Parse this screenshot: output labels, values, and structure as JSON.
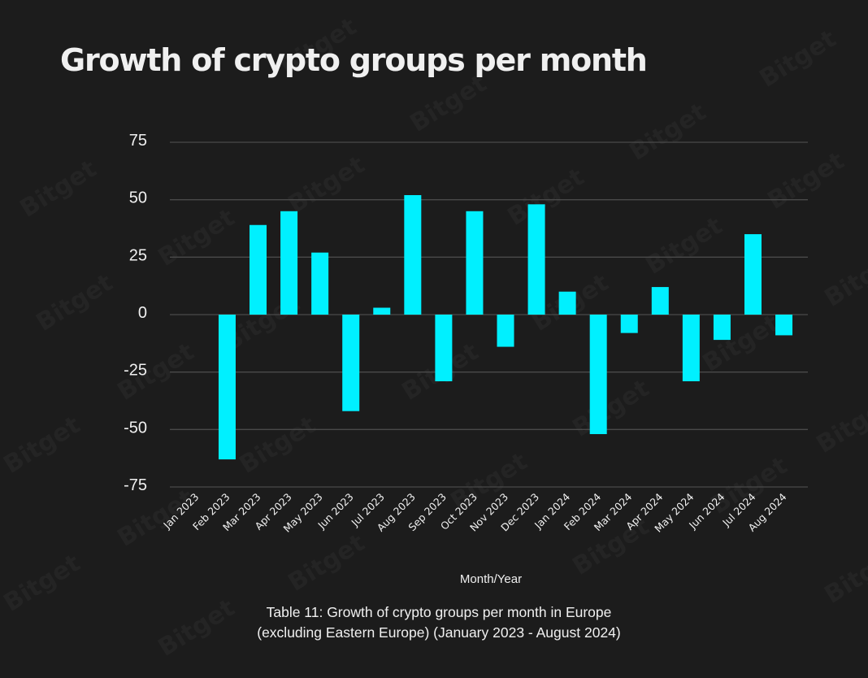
{
  "watermark_text": "Bitget",
  "colors": {
    "background": "#1c1c1c",
    "bar": "#00f0ff",
    "grid": "#4a4a4a",
    "text": "#f0f0f0"
  },
  "chart_data": {
    "type": "bar",
    "title": "Growth of crypto groups per month",
    "xlabel": "Month/Year",
    "ylabel": "",
    "caption_line1": "Table 11: Growth of crypto groups per month in Europe",
    "caption_line2": "(excluding Eastern Europe) (January 2023 - August 2024)",
    "categories": [
      "Jan 2023",
      "Feb 2023",
      "Mar 2023",
      "Apr 2023",
      "May 2023",
      "Jun 2023",
      "Jul 2023",
      "Aug 2023",
      "Sep 2023",
      "Oct 2023",
      "Nov 2023",
      "Dec 2023",
      "Jan 2024",
      "Feb 2024",
      "Mar 2024",
      "Apr 2024",
      "May 2024",
      "Jun 2024",
      "Jul 2024",
      "Aug 2024"
    ],
    "values": [
      0,
      -63,
      39,
      45,
      27,
      -42,
      3,
      52,
      -29,
      45,
      -14,
      48,
      10,
      -52,
      -8,
      12,
      -29,
      -11,
      35,
      -9
    ],
    "ylim": [
      -75,
      75
    ],
    "yticks": [
      75,
      50,
      25,
      0,
      -25,
      -50,
      -75
    ],
    "grid": true,
    "legend": "none"
  }
}
